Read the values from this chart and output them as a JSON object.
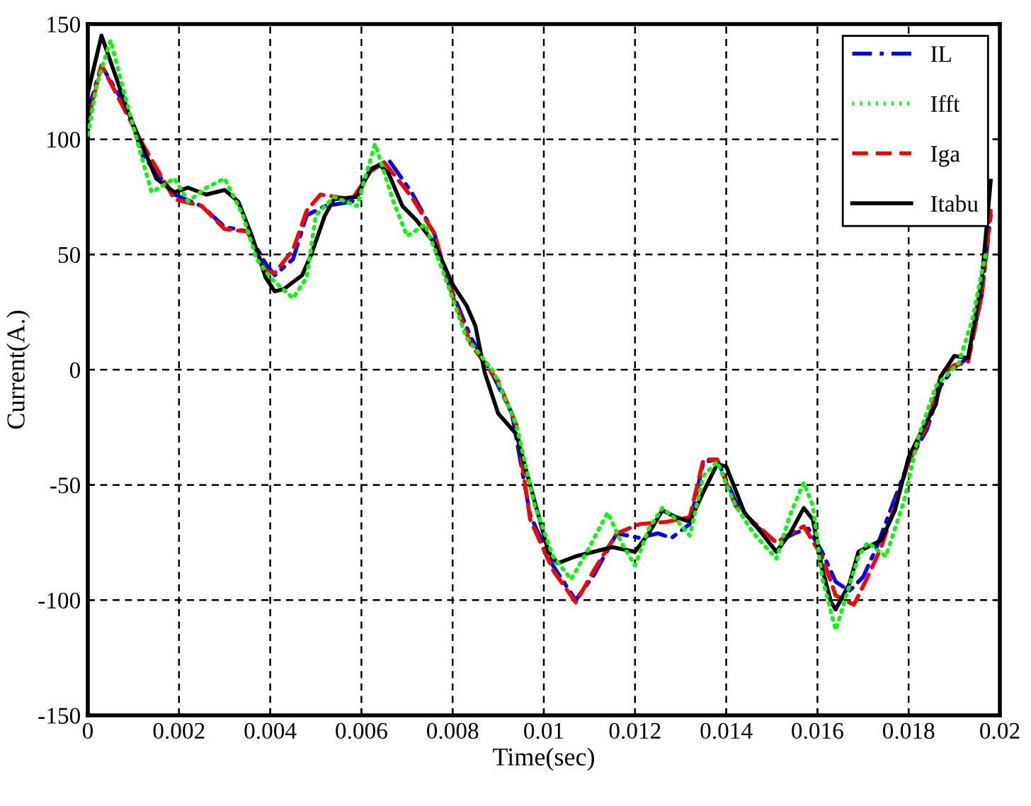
{
  "chart_data": {
    "type": "line",
    "xlabel": "Time(sec)",
    "ylabel": "Current(A.)",
    "xlim": [
      0,
      0.02
    ],
    "xticks": [
      0,
      0.002,
      0.004,
      0.006,
      0.008,
      0.01,
      0.012,
      0.014,
      0.016,
      0.018,
      0.02
    ],
    "ylim": [
      -150,
      150
    ],
    "yticks": [
      -150,
      -100,
      -50,
      0,
      50,
      100,
      150
    ],
    "grid": true,
    "legend": "top right",
    "series": [
      {
        "name": "IL",
        "color": "#0000ff",
        "line_style": "dashdot",
        "x": [
          0.0,
          0.0003,
          0.0009,
          0.0012,
          0.0019,
          0.0025,
          0.003,
          0.0035,
          0.0039,
          0.0041,
          0.0045,
          0.0048,
          0.0052,
          0.0058,
          0.0062,
          0.0066,
          0.0071,
          0.0076,
          0.0079,
          0.0084,
          0.0089,
          0.0093,
          0.0097,
          0.0102,
          0.0107,
          0.0111,
          0.0116,
          0.0121,
          0.0125,
          0.0128,
          0.0132,
          0.0135,
          0.0138,
          0.0142,
          0.0146,
          0.0151,
          0.0155,
          0.0158,
          0.0161,
          0.0164,
          0.0167,
          0.017,
          0.0173,
          0.0176,
          0.018,
          0.0184,
          0.0187,
          0.019,
          0.0193,
          0.0196,
          0.0198
        ],
        "values": [
          112,
          132,
          112,
          93,
          76,
          71,
          62,
          60,
          46,
          41,
          48,
          67,
          71,
          73,
          87,
          91,
          77,
          59,
          38,
          14,
          -3,
          -19,
          -63,
          -85,
          -100,
          -89,
          -71,
          -73,
          -71,
          -73,
          -67,
          -40,
          -39,
          -57,
          -67,
          -75,
          -71,
          -69,
          -79,
          -92,
          -96,
          -90,
          -77,
          -61,
          -40,
          -26,
          -7,
          1,
          5,
          32,
          67
        ]
      },
      {
        "name": "Ifft",
        "color": "#00ff00",
        "line_style": "dotted",
        "x": [
          0.0,
          0.0002,
          0.0005,
          0.0008,
          0.0011,
          0.0014,
          0.0019,
          0.0022,
          0.0026,
          0.003,
          0.0034,
          0.0037,
          0.004,
          0.0045,
          0.0048,
          0.005,
          0.0054,
          0.0059,
          0.0063,
          0.0067,
          0.007,
          0.0074,
          0.0078,
          0.0083,
          0.0089,
          0.0094,
          0.0098,
          0.0102,
          0.0106,
          0.011,
          0.0114,
          0.0117,
          0.012,
          0.0123,
          0.0126,
          0.0129,
          0.0132,
          0.0135,
          0.0138,
          0.0142,
          0.0146,
          0.0151,
          0.0154,
          0.0157,
          0.0159,
          0.0161,
          0.0164,
          0.0169,
          0.0171,
          0.0175,
          0.0179,
          0.0182,
          0.0186,
          0.0191,
          0.0194,
          0.0196,
          0.0197
        ],
        "values": [
          102,
          124,
          143,
          120,
          98,
          77,
          83,
          73,
          79,
          83,
          67,
          48,
          40,
          31,
          40,
          67,
          75,
          71,
          98,
          73,
          58,
          63,
          42,
          14,
          -1,
          -24,
          -59,
          -81,
          -91,
          -77,
          -62,
          -75,
          -85,
          -69,
          -60,
          -65,
          -72,
          -46,
          -40,
          -59,
          -71,
          -82,
          -63,
          -49,
          -59,
          -90,
          -113,
          -81,
          -75,
          -81,
          -57,
          -30,
          -7,
          3,
          22,
          42,
          51
        ]
      },
      {
        "name": "Iga",
        "color": "#ff0000",
        "line_style": "dashed",
        "x": [
          0.0,
          0.0003,
          0.0012,
          0.0019,
          0.0025,
          0.003,
          0.0035,
          0.0039,
          0.0041,
          0.0045,
          0.0048,
          0.0051,
          0.0058,
          0.0062,
          0.0065,
          0.0071,
          0.0076,
          0.008,
          0.0084,
          0.009,
          0.0094,
          0.0097,
          0.0102,
          0.0107,
          0.0111,
          0.0116,
          0.0121,
          0.0127,
          0.0132,
          0.0135,
          0.0138,
          0.0142,
          0.0147,
          0.0151,
          0.0155,
          0.0157,
          0.0161,
          0.0164,
          0.0168,
          0.0171,
          0.0174,
          0.0177,
          0.018,
          0.0184,
          0.0187,
          0.019,
          0.0193,
          0.0196,
          0.0198
        ],
        "values": [
          108,
          132,
          98,
          74,
          71,
          61,
          60,
          43,
          42,
          52,
          69,
          76,
          74,
          86,
          90,
          75,
          59,
          32,
          11,
          -5,
          -24,
          -65,
          -87,
          -101,
          -87,
          -71,
          -67,
          -66,
          -64,
          -39,
          -39,
          -59,
          -68,
          -75,
          -70,
          -68,
          -81,
          -98,
          -102,
          -90,
          -77,
          -59,
          -40,
          -24,
          -3,
          2,
          3,
          32,
          69
        ]
      },
      {
        "name": "Itabu",
        "color": "#000000",
        "line_style": "solid",
        "x": [
          0.0,
          0.0003,
          0.0009,
          0.0015,
          0.0019,
          0.0022,
          0.0026,
          0.003,
          0.0033,
          0.0036,
          0.0039,
          0.0041,
          0.0043,
          0.0047,
          0.0049,
          0.0052,
          0.0054,
          0.0059,
          0.0062,
          0.0064,
          0.0066,
          0.0069,
          0.0072,
          0.0076,
          0.008,
          0.0083,
          0.0085,
          0.0087,
          0.009,
          0.0094,
          0.0097,
          0.0101,
          0.0103,
          0.0107,
          0.0111,
          0.0115,
          0.012,
          0.0123,
          0.0126,
          0.0129,
          0.0132,
          0.0135,
          0.0138,
          0.014,
          0.0144,
          0.0147,
          0.0151,
          0.0154,
          0.0157,
          0.0159,
          0.0161,
          0.0163,
          0.0164,
          0.0167,
          0.0169,
          0.0172,
          0.0174,
          0.0177,
          0.018,
          0.0183,
          0.0186,
          0.0187,
          0.019,
          0.0193,
          0.0196,
          0.0198
        ],
        "values": [
          120,
          145,
          111,
          83,
          77,
          79,
          76,
          78,
          73,
          58,
          40,
          34,
          35,
          41,
          50,
          67,
          74,
          75,
          87,
          89,
          85,
          71,
          65,
          55,
          37,
          28,
          19,
          -1,
          -19,
          -28,
          -50,
          -79,
          -84,
          -81,
          -79,
          -77,
          -79,
          -71,
          -61,
          -64,
          -66,
          -53,
          -41,
          -42,
          -62,
          -69,
          -79,
          -71,
          -60,
          -65,
          -86,
          -101,
          -104,
          -93,
          -79,
          -76,
          -74,
          -61,
          -38,
          -26,
          -15,
          -3,
          6,
          5,
          38,
          82
        ]
      }
    ]
  }
}
